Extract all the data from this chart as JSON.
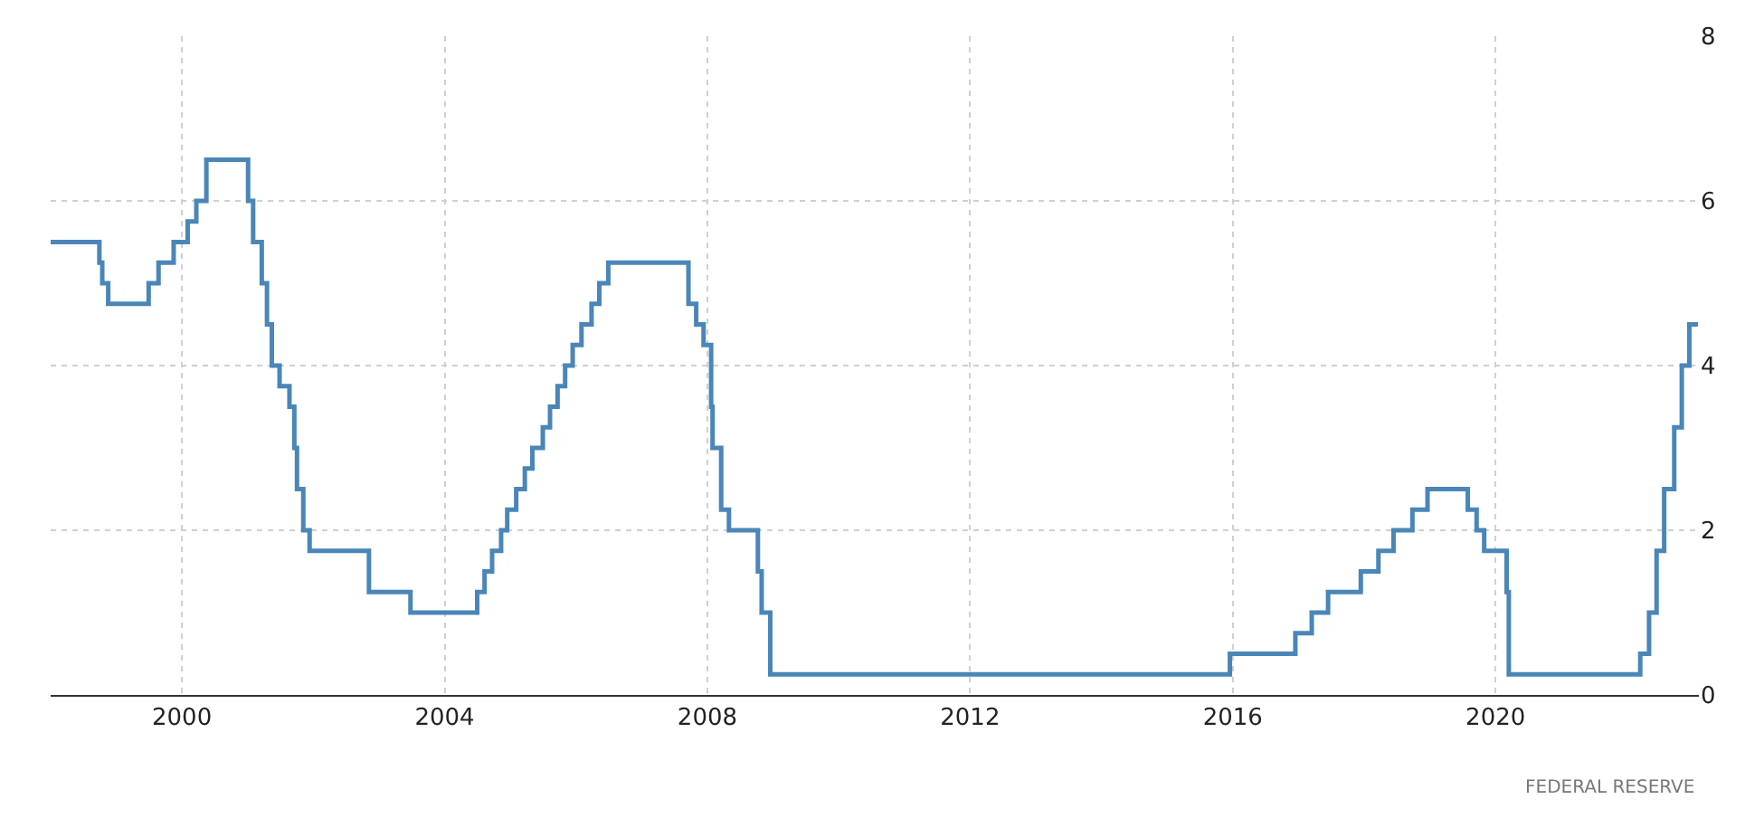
{
  "chart_data": {
    "type": "step",
    "x": [
      "1998-01",
      "1998-09-29",
      "1998-10-15",
      "1998-11-17",
      "1999-06-30",
      "1999-08-24",
      "1999-11-16",
      "2000-02-02",
      "2000-03-21",
      "2000-05-16",
      "2001-01-03",
      "2001-01-31",
      "2001-03-20",
      "2001-04-18",
      "2001-05-15",
      "2001-06-27",
      "2001-08-21",
      "2001-09-17",
      "2001-10-02",
      "2001-11-06",
      "2001-12-11",
      "2002-11-06",
      "2003-06-25",
      "2004-06-30",
      "2004-08-10",
      "2004-09-21",
      "2004-11-10",
      "2004-12-14",
      "2005-02-02",
      "2005-03-22",
      "2005-05-03",
      "2005-06-30",
      "2005-08-09",
      "2005-09-20",
      "2005-11-01",
      "2005-12-13",
      "2006-01-31",
      "2006-03-28",
      "2006-05-10",
      "2006-06-29",
      "2007-09-18",
      "2007-10-31",
      "2007-12-11",
      "2008-01-22",
      "2008-01-30",
      "2008-03-18",
      "2008-04-30",
      "2008-10-08",
      "2008-10-29",
      "2008-12-16",
      "2015-12-16",
      "2016-12-14",
      "2017-03-15",
      "2017-06-14",
      "2017-12-13",
      "2018-03-21",
      "2018-06-13",
      "2018-09-26",
      "2018-12-19",
      "2019-07-31",
      "2019-09-18",
      "2019-10-30",
      "2020-03-03",
      "2020-03-15",
      "2022-03-16",
      "2022-05-04",
      "2022-06-15",
      "2022-07-27",
      "2022-09-21",
      "2022-11-02",
      "2022-12-14",
      "2023-01-31"
    ],
    "series": [
      {
        "color": "#4a86b8",
        "values": [
          5.5,
          5.25,
          5.0,
          4.75,
          5.0,
          5.25,
          5.5,
          5.75,
          6.0,
          6.5,
          6.0,
          5.5,
          5.0,
          4.5,
          4.0,
          3.75,
          3.5,
          3.0,
          2.5,
          2.0,
          1.75,
          1.25,
          1.0,
          1.25,
          1.5,
          1.75,
          2.0,
          2.25,
          2.5,
          2.75,
          3.0,
          3.25,
          3.5,
          3.75,
          4.0,
          4.25,
          4.5,
          4.75,
          5.0,
          5.25,
          4.75,
          4.5,
          4.25,
          3.5,
          3.0,
          2.25,
          2.0,
          1.5,
          1.0,
          0.25,
          0.5,
          0.75,
          1.0,
          1.25,
          1.5,
          1.75,
          2.0,
          2.25,
          2.5,
          2.25,
          2.0,
          1.75,
          1.25,
          0.25,
          0.5,
          1.0,
          1.75,
          2.5,
          3.25,
          4.0,
          4.5,
          4.5
        ]
      }
    ],
    "xlim": [
      "1998-01-01",
      "2023-02-05"
    ],
    "xticks": [
      {
        "value": "2000-01-01",
        "label": "2000"
      },
      {
        "value": "2004-01-01",
        "label": "2004"
      },
      {
        "value": "2008-01-01",
        "label": "2008"
      },
      {
        "value": "2012-01-01",
        "label": "2012"
      },
      {
        "value": "2016-01-01",
        "label": "2016"
      },
      {
        "value": "2020-01-01",
        "label": "2020"
      }
    ],
    "ylim": [
      0,
      8
    ],
    "yticks": [
      0,
      2,
      4,
      6,
      8
    ],
    "grid": true,
    "marker": "none",
    "line_style": "solid",
    "annotations": [
      "FEDERAL RESERVE"
    ]
  }
}
